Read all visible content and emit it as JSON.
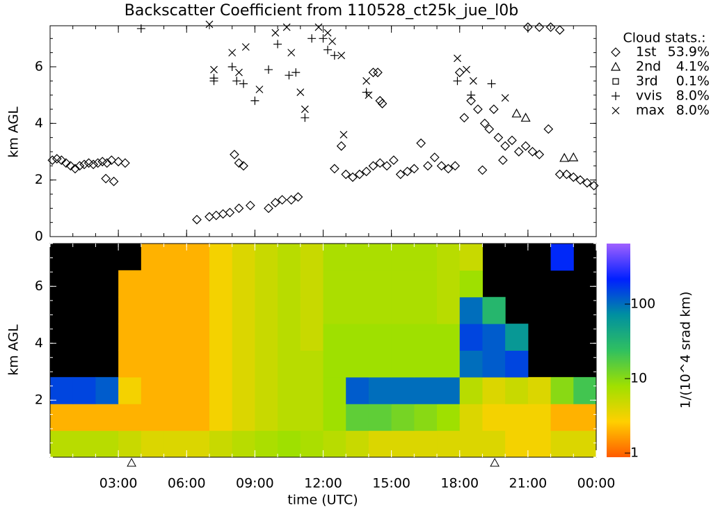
{
  "chart_data": [
    {
      "type": "scatter",
      "title": "Backscatter Coefficient from 110528_ct25k_jue_l0b",
      "ylabel": "km AGL",
      "xlim": [
        0,
        24
      ],
      "ylim": [
        0,
        7.45
      ],
      "yticks": [
        0,
        2,
        4,
        6
      ],
      "legend_title": "Cloud stats.:",
      "series": [
        {
          "name": "1st",
          "marker": "diamond",
          "stat": "53.9%",
          "color": "#000000",
          "x": [
            0.1,
            0.3,
            0.5,
            0.7,
            0.9,
            1.1,
            1.3,
            1.5,
            1.7,
            1.9,
            2.1,
            2.3,
            2.5,
            2.7,
            3.0,
            3.3,
            2.45,
            2.8,
            6.45,
            7.0,
            7.3,
            7.6,
            7.9,
            8.3,
            8.1,
            8.3,
            8.5,
            8.8,
            9.6,
            9.9,
            10.2,
            10.6,
            10.9,
            14.2,
            14.4,
            14.5,
            14.6,
            12.5,
            12.8,
            13.0,
            13.3,
            13.6,
            13.9,
            14.2,
            14.5,
            14.8,
            15.1,
            15.4,
            15.7,
            16.0,
            16.3,
            16.6,
            16.9,
            17.2,
            17.5,
            17.8,
            18.0,
            18.2,
            18.5,
            18.8,
            19.1,
            19.3,
            19.5,
            19.7,
            20.0,
            20.3,
            20.6,
            20.9,
            21.2,
            21.5,
            19.0,
            19.9,
            21.9,
            22.4,
            22.7,
            23.0,
            23.3,
            23.6,
            23.9,
            21.0,
            21.5,
            22.0,
            22.4
          ],
          "values": [
            2.7,
            2.75,
            2.7,
            2.6,
            2.5,
            2.4,
            2.5,
            2.55,
            2.6,
            2.55,
            2.6,
            2.65,
            2.6,
            2.7,
            2.65,
            2.6,
            2.05,
            1.95,
            0.6,
            0.7,
            0.75,
            0.8,
            0.85,
            1.0,
            2.9,
            2.6,
            2.5,
            1.1,
            1.0,
            1.2,
            1.3,
            1.3,
            1.4,
            5.8,
            5.8,
            4.8,
            4.7,
            2.4,
            3.2,
            2.2,
            2.1,
            2.2,
            2.3,
            2.5,
            2.6,
            2.5,
            2.7,
            2.2,
            2.3,
            2.4,
            3.3,
            2.5,
            2.8,
            2.5,
            2.4,
            2.5,
            5.8,
            4.2,
            4.8,
            4.5,
            4.0,
            3.8,
            4.5,
            3.5,
            3.2,
            3.4,
            3.0,
            3.2,
            3.0,
            2.9,
            2.35,
            2.7,
            3.8,
            2.2,
            2.2,
            2.1,
            2.0,
            1.9,
            1.8,
            7.4,
            7.4,
            7.4,
            7.3
          ]
        },
        {
          "name": "2nd",
          "marker": "triangle",
          "stat": "4.1%",
          "color": "#000000",
          "x": [
            20.5,
            20.9,
            22.6,
            23.0
          ],
          "values": [
            4.35,
            4.2,
            2.78,
            2.8
          ]
        },
        {
          "name": "3rd",
          "marker": "square",
          "stat": "0.1%",
          "color": "#000000",
          "x": [],
          "values": []
        },
        {
          "name": "vvis",
          "marker": "plus",
          "stat": "8.0%",
          "color": "#000000",
          "x": [
            7.2,
            7.2,
            8.0,
            8.2,
            8.5,
            9.0,
            9.6,
            10.0,
            10.5,
            10.8,
            11.2,
            11.5,
            12.0,
            12.2,
            12.5,
            13.9,
            17.9,
            18.5,
            19.4,
            4.0
          ],
          "values": [
            5.6,
            5.5,
            6.0,
            5.5,
            5.4,
            4.8,
            5.9,
            6.8,
            5.7,
            5.8,
            4.2,
            7.0,
            7.0,
            6.6,
            6.4,
            5.1,
            5.5,
            5.0,
            5.4,
            7.35
          ]
        },
        {
          "name": "max",
          "marker": "cross",
          "stat": "8.0%",
          "color": "#000000",
          "x": [
            7.0,
            7.2,
            8.0,
            8.3,
            8.6,
            9.2,
            9.9,
            10.4,
            10.6,
            11.0,
            11.2,
            11.8,
            12.2,
            12.4,
            12.8,
            12.9,
            13.9,
            14.0,
            17.9,
            18.3,
            18.6,
            20.0
          ],
          "values": [
            7.5,
            5.9,
            6.5,
            5.8,
            6.7,
            5.2,
            7.2,
            7.4,
            6.5,
            5.1,
            4.5,
            7.4,
            7.2,
            6.9,
            6.4,
            3.6,
            5.5,
            5.0,
            6.3,
            5.9,
            5.5,
            4.9
          ]
        }
      ]
    },
    {
      "type": "heatmap",
      "ylabel": "km AGL",
      "xlabel": "time (UTC)",
      "xlim": [
        0,
        24
      ],
      "ylim": [
        0,
        7.5
      ],
      "yticks": [
        2,
        4,
        6
      ],
      "xticks": [
        {
          "value": 3,
          "label": "03:00"
        },
        {
          "value": 6,
          "label": "06:00"
        },
        {
          "value": 9,
          "label": "09:00"
        },
        {
          "value": 12,
          "label": "12:00"
        },
        {
          "value": 15,
          "label": "15:00"
        },
        {
          "value": 18,
          "label": "18:00"
        },
        {
          "value": 21,
          "label": "21:00"
        },
        {
          "value": 24,
          "label": "00:00"
        }
      ],
      "z": [
        [
          6,
          6,
          6,
          5,
          4,
          4,
          4,
          5,
          6,
          7,
          8,
          7,
          6,
          5,
          4,
          4,
          4,
          4,
          4,
          4,
          3,
          3,
          4,
          4
        ],
        [
          2,
          2,
          2,
          2,
          2,
          2,
          2,
          3,
          4,
          5,
          6,
          6,
          8,
          15,
          15,
          12,
          10,
          8,
          4,
          3,
          3,
          3,
          2,
          2
        ],
        [
          150,
          150,
          120,
          3,
          2,
          2,
          2,
          3,
          4,
          5,
          6,
          6,
          8,
          120,
          100,
          100,
          100,
          100,
          6,
          4,
          5,
          4,
          10,
          20
        ],
        [
          null,
          null,
          null,
          2,
          2,
          2,
          2,
          3,
          4,
          5,
          6,
          6,
          8,
          8,
          8,
          8,
          8,
          8,
          100,
          120,
          150,
          null,
          null,
          null
        ],
        [
          null,
          null,
          null,
          2,
          2,
          2,
          2,
          3,
          4,
          5,
          6,
          5,
          8,
          8,
          8,
          8,
          8,
          8,
          150,
          120,
          60,
          null,
          null,
          null
        ],
        [
          null,
          null,
          null,
          2,
          2,
          2,
          2,
          3,
          4,
          5,
          6,
          5,
          7,
          7,
          7,
          7,
          7,
          6,
          100,
          30,
          null,
          null,
          null,
          null
        ],
        [
          null,
          null,
          null,
          2,
          2,
          2,
          2,
          3,
          4,
          5,
          6,
          5,
          7,
          7,
          7,
          7,
          7,
          6,
          8,
          null,
          null,
          null,
          null,
          null
        ],
        [
          null,
          null,
          null,
          null,
          2,
          2,
          2,
          3,
          4,
          5,
          6,
          5,
          7,
          7,
          7,
          7,
          7,
          6,
          5,
          null,
          null,
          null,
          200,
          null
        ]
      ],
      "colorbar": {
        "label": "1/(10^4 srad km)",
        "scale": "log",
        "lim": [
          0.88,
          650
        ],
        "ticks": [
          1,
          10,
          100
        ],
        "colormap": [
          "#ff5a00",
          "#ffd000",
          "#a0e000",
          "#30c060",
          "#0090a0",
          "#0020ff",
          "#a060ff"
        ]
      },
      "axis_markers": [
        3.58,
        19.54
      ]
    }
  ]
}
